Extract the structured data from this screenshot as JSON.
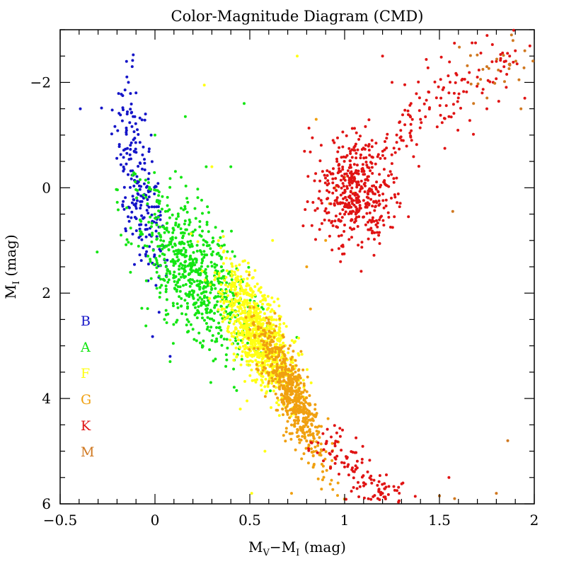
{
  "chart_data": {
    "type": "scatter",
    "title": "Color-Magnitude Diagram (CMD)",
    "xlabel": {
      "main": "M",
      "sub1": "V",
      "mid": "−M",
      "sub2": "I",
      "tail": " (mag)"
    },
    "ylabel": {
      "main": "M",
      "sub": "I",
      "tail": " (mag)"
    },
    "xlim": [
      -0.5,
      2.0
    ],
    "ylim": [
      6,
      -3
    ],
    "y_inverted": true,
    "x_ticks": [
      {
        "value": -0.5,
        "label": "−0.5"
      },
      {
        "value": 0,
        "label": "0"
      },
      {
        "value": 0.5,
        "label": "0.5"
      },
      {
        "value": 1,
        "label": "1"
      },
      {
        "value": 1.5,
        "label": "1.5"
      },
      {
        "value": 2,
        "label": "2"
      }
    ],
    "y_ticks": [
      {
        "value": -2,
        "label": "−2"
      },
      {
        "value": 0,
        "label": "0"
      },
      {
        "value": 2,
        "label": "2"
      },
      {
        "value": 4,
        "label": "4"
      },
      {
        "value": 6,
        "label": "6"
      }
    ],
    "legend_position": "left",
    "series": [
      {
        "name": "B",
        "color": "#1515c8",
        "center": [
          -0.08,
          0.05
        ],
        "spread": [
          0.06,
          1.0
        ],
        "count": 220,
        "points": [
          [
            -0.15,
            -2.4
          ],
          [
            -0.12,
            -2.3
          ],
          [
            -0.17,
            -1.75
          ],
          [
            -0.05,
            -1.4
          ],
          [
            -0.02,
            -1.0
          ],
          [
            0.01,
            0.6
          ],
          [
            0.03,
            1.2
          ],
          [
            -0.1,
            0.3
          ],
          [
            0.08,
            3.2
          ],
          [
            0.02,
            1.7
          ],
          [
            -0.1,
            -1.8
          ],
          [
            -0.14,
            -2.0
          ]
        ]
      },
      {
        "name": "A",
        "color": "#14e614",
        "center": [
          0.2,
          1.6
        ],
        "spread": [
          0.12,
          0.75
        ],
        "count": 700,
        "points": [
          [
            0.47,
            -1.6
          ],
          [
            0.16,
            -1.35
          ],
          [
            0.0,
            -1.0
          ],
          [
            0.05,
            2.5
          ],
          [
            0.08,
            3.3
          ],
          [
            0.3,
            2.9
          ],
          [
            0.41,
            2.0
          ],
          [
            0.35,
            1.5
          ],
          [
            0.53,
            3.1
          ],
          [
            0.4,
            -0.4
          ],
          [
            0.27,
            -0.4
          ]
        ]
      },
      {
        "name": "F",
        "color": "#ffff14",
        "center": [
          0.55,
          2.8
        ],
        "spread": [
          0.07,
          0.6
        ],
        "count": 900,
        "points": [
          [
            0.26,
            -1.95
          ],
          [
            0.75,
            -2.5
          ],
          [
            0.3,
            -0.4
          ],
          [
            0.51,
            5.8
          ],
          [
            0.58,
            5.0
          ],
          [
            0.45,
            4.2
          ],
          [
            0.62,
            1.0
          ],
          [
            0.4,
            2.2
          ]
        ]
      },
      {
        "name": "G",
        "color": "#f0a010",
        "center": [
          0.72,
          3.9
        ],
        "spread": [
          0.05,
          0.7
        ],
        "count": 600,
        "points": [
          [
            0.95,
            0.0
          ],
          [
            1.0,
            -0.2
          ],
          [
            0.92,
            0.3
          ],
          [
            1.05,
            0.1
          ],
          [
            0.85,
            -1.3
          ],
          [
            0.8,
            1.5
          ],
          [
            0.82,
            2.3
          ],
          [
            0.9,
            1.0
          ],
          [
            0.78,
            4.6
          ],
          [
            0.85,
            5.0
          ],
          [
            0.72,
            5.8
          ]
        ]
      },
      {
        "name": "K",
        "color": "#e01414",
        "center": [
          1.05,
          0.1
        ],
        "spread": [
          0.1,
          0.5
        ],
        "count": 700,
        "points": [
          [
            1.55,
            -1.8
          ],
          [
            1.65,
            -2.0
          ],
          [
            1.8,
            -2.4
          ],
          [
            1.9,
            -2.6
          ],
          [
            1.4,
            -1.3
          ],
          [
            1.3,
            -0.9
          ],
          [
            1.0,
            5.3
          ],
          [
            1.1,
            5.6
          ],
          [
            0.95,
            4.9
          ],
          [
            1.2,
            5.8
          ],
          [
            1.55,
            5.5
          ],
          [
            1.87,
            -2.5
          ],
          [
            1.75,
            -1.5
          ],
          [
            1.7,
            -2.1
          ],
          [
            1.95,
            -1.7
          ],
          [
            1.25,
            -2.0
          ],
          [
            1.35,
            -1.6
          ],
          [
            1.2,
            -2.5
          ]
        ]
      },
      {
        "name": "M",
        "color": "#d07820",
        "center": [
          1.8,
          -2.4
        ],
        "spread": [
          0.12,
          0.4
        ],
        "count": 25,
        "points": [
          [
            1.86,
            4.8
          ],
          [
            1.57,
            0.45
          ],
          [
            1.8,
            5.8
          ],
          [
            1.68,
            -1.6
          ],
          [
            1.93,
            -1.5
          ],
          [
            1.75,
            -2.3
          ],
          [
            1.95,
            -2.6
          ],
          [
            1.88,
            -2.9
          ],
          [
            1.58,
            5.9
          ],
          [
            1.5,
            5.85
          ]
        ]
      }
    ]
  }
}
